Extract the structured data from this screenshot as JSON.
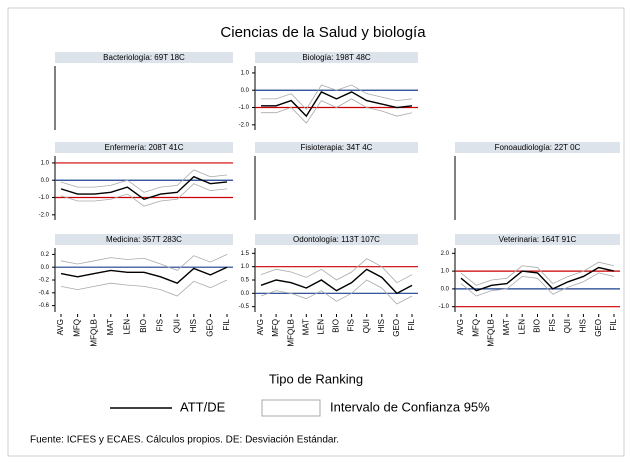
{
  "chart_data": {
    "type": "small-multiples",
    "title": "Ciencias de la Salud y biología",
    "xlabel": "Tipo de Ranking",
    "categories": [
      "AVG",
      "MFQ",
      "MFQLB",
      "MAT",
      "LEN",
      "BIO",
      "FIS",
      "QUI",
      "HIS",
      "GEO",
      "FIL"
    ],
    "line_color": "#000000",
    "ci_color": "#aaaaaa",
    "header_color": "#dce3ea",
    "legend": {
      "line": "ATT/DE",
      "band": "Intervalo de Confianza 95%"
    },
    "source": "Fuente: ICFES y ECAES. Cálculos propios. DE: Desviación Estándar.",
    "panels": [
      {
        "title": "Bacteriología: 69T 18C"
      },
      {
        "title": "Biología: 198T 48C",
        "ylim": [
          -2.3,
          1.4
        ],
        "yticks": [
          {
            "value": 1,
            "label": "1.0"
          },
          {
            "value": 0,
            "label": "0.0"
          },
          {
            "value": -1,
            "label": "-1.0"
          },
          {
            "value": -2,
            "label": "-2.0"
          }
        ],
        "values": [
          -0.9,
          -0.9,
          -0.6,
          -1.5,
          -0.1,
          -0.5,
          -0.1,
          -0.6,
          -0.8,
          -1.0,
          -0.9
        ],
        "ci_lower": [
          -1.3,
          -1.3,
          -1.0,
          -1.9,
          -0.6,
          -1.0,
          -0.5,
          -1.0,
          -1.2,
          -1.5,
          -1.3
        ],
        "ci_upper": [
          -0.5,
          -0.5,
          -0.2,
          -1.1,
          0.3,
          0.0,
          0.3,
          -0.2,
          -0.4,
          -0.6,
          -0.5
        ],
        "ref_lines": [
          {
            "value": 0,
            "color": "#1a3f8f"
          },
          {
            "value": -1,
            "color": "#cc0000"
          }
        ]
      },
      {
        "title": "Enfermería: 208T 41C",
        "ylim": [
          -2.3,
          1.4
        ],
        "yticks": [
          {
            "value": 1,
            "label": "1.0"
          },
          {
            "value": 0,
            "label": "0.0"
          },
          {
            "value": -1,
            "label": "-1.0"
          },
          {
            "value": -2,
            "label": "-2.0"
          }
        ],
        "values": [
          -0.5,
          -0.8,
          -0.8,
          -0.7,
          -0.4,
          -1.1,
          -0.8,
          -0.7,
          0.2,
          -0.2,
          -0.1
        ],
        "ci_lower": [
          -0.9,
          -1.2,
          -1.2,
          -1.1,
          -0.8,
          -1.5,
          -1.2,
          -1.1,
          -0.2,
          -0.6,
          -0.5
        ],
        "ci_upper": [
          -0.1,
          -0.4,
          -0.4,
          -0.3,
          0.0,
          -0.7,
          -0.4,
          -0.3,
          0.6,
          0.2,
          0.3
        ],
        "ref_lines": [
          {
            "value": 0,
            "color": "#1a3f8f"
          },
          {
            "value": 1,
            "color": "#cc0000"
          },
          {
            "value": -1,
            "color": "#cc0000"
          }
        ]
      },
      {
        "title": "Fisioterapia: 34T 4C"
      },
      {
        "title": "Fonoaudiología: 22T 0C"
      },
      {
        "title": "Medicina: 357T 283C",
        "ylim": [
          -0.7,
          0.3
        ],
        "yticks": [
          0.2,
          {
            "value": 0,
            "label": "0.0"
          },
          -0.2,
          -0.4,
          -0.6
        ],
        "values": [
          -0.1,
          -0.15,
          -0.1,
          -0.05,
          -0.08,
          -0.08,
          -0.15,
          -0.25,
          -0.02,
          -0.12,
          0.0
        ],
        "ci_lower": [
          -0.3,
          -0.35,
          -0.3,
          -0.25,
          -0.28,
          -0.3,
          -0.35,
          -0.45,
          -0.22,
          -0.32,
          -0.2
        ],
        "ci_upper": [
          0.1,
          0.05,
          0.1,
          0.15,
          0.12,
          0.14,
          0.05,
          -0.05,
          0.18,
          0.08,
          0.2
        ],
        "ref_lines": [
          {
            "value": 0,
            "color": "#1a3f8f"
          }
        ]
      },
      {
        "title": "Odontología: 113T 107C",
        "ylim": [
          -0.7,
          1.7
        ],
        "yticks": [
          1.5,
          {
            "value": 1,
            "label": "1.0"
          },
          0.5,
          {
            "value": 0,
            "label": "0.0"
          },
          -0.5
        ],
        "values": [
          0.3,
          0.5,
          0.4,
          0.2,
          0.5,
          0.1,
          0.4,
          0.9,
          0.6,
          0.0,
          0.3
        ],
        "ci_lower": [
          -0.1,
          0.1,
          0.0,
          -0.2,
          0.1,
          -0.3,
          0.0,
          0.5,
          0.2,
          -0.4,
          -0.1
        ],
        "ci_upper": [
          0.7,
          0.9,
          0.8,
          0.6,
          0.9,
          0.5,
          0.8,
          1.3,
          1.0,
          0.4,
          0.7
        ],
        "ref_lines": [
          {
            "value": 0,
            "color": "#1a3f8f"
          },
          {
            "value": 1,
            "color": "#cc0000"
          }
        ]
      },
      {
        "title": "Veterinaria: 164T 91C",
        "ylim": [
          -1.3,
          2.3
        ],
        "yticks": [
          {
            "value": 2,
            "label": "2.0"
          },
          {
            "value": 1,
            "label": "1.0"
          },
          {
            "value": 0,
            "label": "0.0"
          },
          {
            "value": -1,
            "label": "-1.0"
          }
        ],
        "values": [
          0.6,
          -0.1,
          0.2,
          0.3,
          1.0,
          0.9,
          0.0,
          0.4,
          0.7,
          1.2,
          1.0
        ],
        "ci_lower": [
          0.3,
          -0.4,
          -0.1,
          0.0,
          0.7,
          0.6,
          -0.3,
          0.1,
          0.4,
          0.9,
          0.7
        ],
        "ci_upper": [
          0.9,
          0.2,
          0.5,
          0.6,
          1.3,
          1.2,
          0.3,
          0.7,
          1.0,
          1.5,
          1.3
        ],
        "ref_lines": [
          {
            "value": 0,
            "color": "#1a3f8f"
          },
          {
            "value": 1,
            "color": "#cc0000"
          },
          {
            "value": -1,
            "color": "#cc0000"
          }
        ]
      }
    ]
  }
}
